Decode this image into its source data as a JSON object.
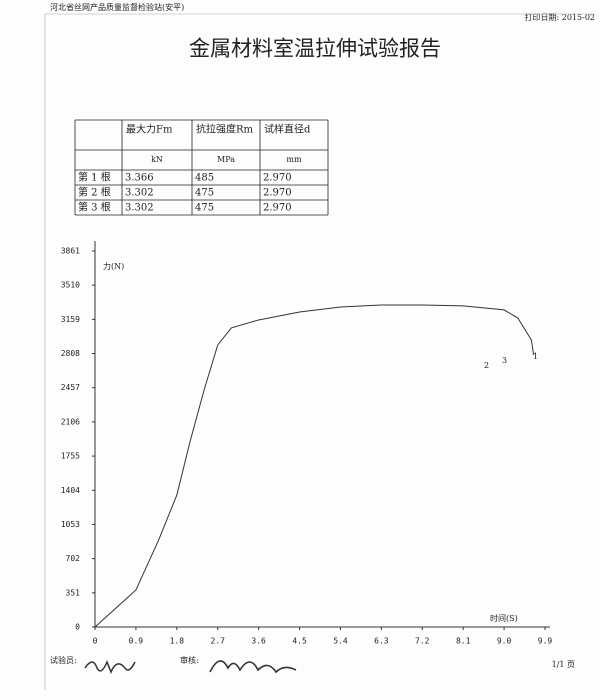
{
  "header": {
    "organization": "河北省丝网产品质量监督检验站(安平)",
    "print_date": "打印日期: 2015-02"
  },
  "title": "金属材料室温拉伸试验报告",
  "table": {
    "columns": [
      "最大力Fm",
      "抗拉强度Rm",
      "试样直径d"
    ],
    "units": [
      "kN",
      "MPa",
      "mm"
    ],
    "rows": [
      [
        "第 1 根",
        "3.366",
        "485",
        "2.970"
      ],
      [
        "第 2 根",
        "3.302",
        "475",
        "2.970"
      ],
      [
        "第 3 根",
        "3.302",
        "475",
        "2.970"
      ]
    ]
  },
  "chart_data": {
    "type": "line",
    "xlabel": "时间(S)",
    "ylabel": "力(N)",
    "x": [
      0,
      0.9,
      1.4,
      1.8,
      2.1,
      2.4,
      2.7,
      3.0,
      3.6,
      4.5,
      5.4,
      6.3,
      7.2,
      8.1,
      9.0,
      9.3,
      9.6,
      9.65
    ],
    "series": [
      {
        "color": "#333333",
        "values": [
          0,
          380,
          893,
          1355,
          1920,
          2434,
          2896,
          3071,
          3153,
          3235,
          3286,
          3307,
          3307,
          3297,
          3256,
          3174,
          2948,
          2794
        ]
      }
    ],
    "xlim": [
      0,
      9.9
    ],
    "ylim": [
      0,
      3861
    ],
    "xticks": [
      0,
      0.9,
      1.8,
      2.7,
      3.6,
      4.5,
      5.4,
      6.3,
      7.2,
      8.1,
      {
        "value": 9,
        "label": "9.0"
      },
      9.9
    ],
    "yticks": [
      0,
      351,
      702,
      1053,
      1404,
      1755,
      2106,
      2457,
      2808,
      3159,
      3510,
      3861
    ],
    "annotations": [
      "2",
      "3",
      "1"
    ]
  },
  "footer": {
    "tester": "试验员:",
    "reviewer": "审核:",
    "page": "1/1 页"
  }
}
